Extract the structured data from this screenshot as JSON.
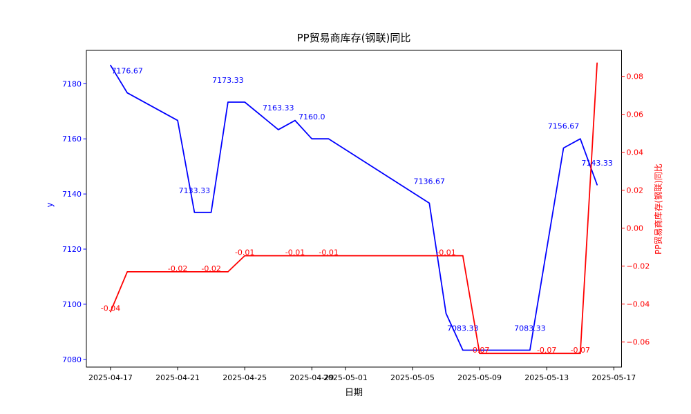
{
  "title": "PP贸易商库存(钢联)同比",
  "xlabel": "日期",
  "ylabel_left": "y",
  "ylabel_right": "PP贸易商库存(钢联)同比",
  "colors": {
    "left_series": "#0000ff",
    "right_series": "#ff0000",
    "axis": "#000000",
    "background": "#ffffff"
  },
  "chart_data": {
    "type": "line",
    "x": [
      "2025-04-17",
      "2025-04-18",
      "2025-04-21",
      "2025-04-22",
      "2025-04-23",
      "2025-04-24",
      "2025-04-25",
      "2025-04-27",
      "2025-04-28",
      "2025-04-29",
      "2025-04-30",
      "2025-05-06",
      "2025-05-07",
      "2025-05-08",
      "2025-05-09",
      "2025-05-12",
      "2025-05-13",
      "2025-05-14",
      "2025-05-15",
      "2025-05-16"
    ],
    "series": [
      {
        "name": "PP贸易商库存(钢联)",
        "axis": "left",
        "color": "#0000ff",
        "values": [
          7186.67,
          7176.67,
          7166.67,
          7133.33,
          7133.33,
          7173.33,
          7173.33,
          7163.33,
          7166.67,
          7160.0,
          7160.0,
          7136.67,
          7096.67,
          7083.33,
          7083.33,
          7083.33,
          7120.0,
          7156.67,
          7160.0,
          7143.33
        ]
      },
      {
        "name": "同比",
        "axis": "right",
        "color": "#ff0000",
        "values": [
          -0.044,
          -0.023,
          -0.023,
          -0.023,
          -0.023,
          -0.023,
          -0.0145,
          -0.0145,
          -0.0145,
          -0.0145,
          -0.0145,
          -0.0145,
          -0.0145,
          -0.0145,
          -0.066,
          -0.066,
          -0.066,
          -0.066,
          -0.066,
          0.087
        ]
      }
    ],
    "annotations": [
      {
        "x": "2025-04-17",
        "series": 1,
        "label": "-0.04"
      },
      {
        "x": "2025-04-18",
        "series": 0,
        "label": "7176.67"
      },
      {
        "x": "2025-04-21",
        "series": 1,
        "label": "-0.02"
      },
      {
        "x": "2025-04-22",
        "series": 0,
        "label": "7133.33"
      },
      {
        "x": "2025-04-23",
        "series": 1,
        "label": "-0.02"
      },
      {
        "x": "2025-04-24",
        "series": 0,
        "label": "7173.33"
      },
      {
        "x": "2025-04-25",
        "series": 1,
        "label": "-0.01"
      },
      {
        "x": "2025-04-27",
        "series": 0,
        "label": "7163.33"
      },
      {
        "x": "2025-04-28",
        "series": 1,
        "label": "-0.01"
      },
      {
        "x": "2025-04-29",
        "series": 0,
        "label": "7160.0"
      },
      {
        "x": "2025-04-30",
        "series": 1,
        "label": "-0.01"
      },
      {
        "x": "2025-05-06",
        "series": 0,
        "label": "7136.67"
      },
      {
        "x": "2025-05-07",
        "series": 1,
        "label": "-0.01"
      },
      {
        "x": "2025-05-08",
        "series": 0,
        "label": "7083.33"
      },
      {
        "x": "2025-05-09",
        "series": 1,
        "label": "-0.07"
      },
      {
        "x": "2025-05-12",
        "series": 0,
        "label": "7083.33"
      },
      {
        "x": "2025-05-13",
        "series": 1,
        "label": "-0.07"
      },
      {
        "x": "2025-05-14",
        "series": 0,
        "label": "7156.67"
      },
      {
        "x": "2025-05-15",
        "series": 1,
        "label": "-0.07"
      },
      {
        "x": "2025-05-16",
        "series": 0,
        "label": "7143.33"
      }
    ],
    "x_ticks": [
      "2025-04-17",
      "2025-04-21",
      "2025-04-25",
      "2025-04-29",
      "2025-05-01",
      "2025-05-05",
      "2025-05-09",
      "2025-05-13",
      "2025-05-17"
    ],
    "y_ticks_left": [
      7080,
      7100,
      7120,
      7140,
      7160,
      7180
    ],
    "y_ticks_right": [
      -0.06,
      -0.04,
      -0.02,
      0.0,
      0.02,
      0.04,
      0.06,
      0.08
    ],
    "ylim_left": [
      7077.2,
      7192.1
    ],
    "ylim_right": [
      -0.0732,
      0.0937
    ],
    "xlim_days": [
      -1.44,
      30.46
    ],
    "grid": false,
    "legend": "none"
  }
}
